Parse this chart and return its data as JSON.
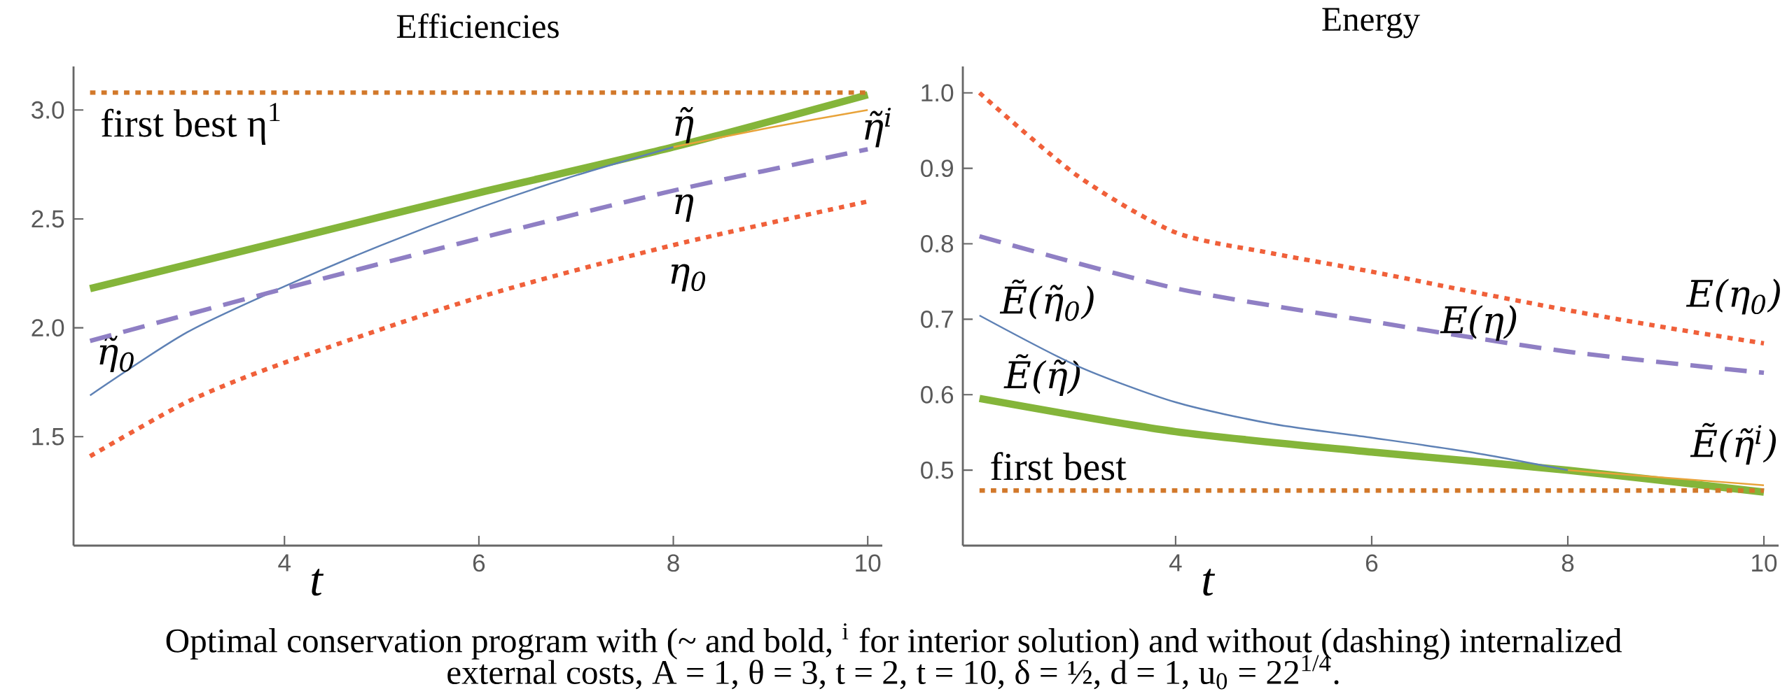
{
  "chart_data": [
    {
      "type": "line",
      "title": "Efficiencies",
      "xlabel": "t",
      "xlim": [
        1.83,
        10.15
      ],
      "ylim": [
        1.0,
        3.2
      ],
      "xticks": [
        4,
        6,
        8,
        10
      ],
      "yticks": [
        1.5,
        {
          "value": 2.0,
          "label": "2.0"
        },
        2.5,
        {
          "value": 3.0,
          "label": "3.0"
        }
      ],
      "series": [
        {
          "name": "η̃",
          "color": "#84b53a",
          "line_style": "solid",
          "x": [
            2,
            4,
            6,
            8,
            10
          ],
          "values": [
            2.18,
            2.4,
            2.62,
            2.83,
            3.07
          ]
        },
        {
          "name": "η̃$^{i}$",
          "color": "#e8a33a",
          "line_style": "solid",
          "x": [
            8,
            9,
            10
          ],
          "values": [
            2.83,
            2.92,
            3.0
          ]
        },
        {
          "name": "η̃$_{0}$",
          "color": "#5e81b5",
          "line_style": "solid",
          "x": [
            2,
            3,
            4,
            5,
            6,
            7,
            8
          ],
          "values": [
            1.69,
            1.98,
            2.19,
            2.38,
            2.55,
            2.7,
            2.83
          ]
        },
        {
          "name": "η",
          "color": "#8f7fc4",
          "line_style": "dashed",
          "x": [
            2,
            4,
            6,
            8,
            10
          ],
          "values": [
            1.94,
            2.18,
            2.41,
            2.63,
            2.82
          ]
        },
        {
          "name": "η$_{0}$",
          "color": "#f0603a",
          "line_style": "dotted",
          "x": [
            2,
            3,
            4,
            6,
            8,
            10
          ],
          "values": [
            1.41,
            1.66,
            1.84,
            2.14,
            2.38,
            2.58
          ]
        }
      ],
      "ref_lines": [
        {
          "axis": "y",
          "value": 3.08,
          "label": "first best η$^{1}$",
          "color": "#d2782a",
          "line_style": "dotted"
        }
      ],
      "annotations": [
        "Optimal conservation program with (~ and bold, $^{i}$ for interior solution) and without (dashing) internalized",
        "external costs, A = 1, θ = 3, t = 2, t = 10, δ = ½, d = 1, u$_{0}$ = 22$^{1/4}$."
      ]
    },
    {
      "type": "line",
      "title": "Energy",
      "xlabel": "t",
      "xlim": [
        1.83,
        10.15
      ],
      "ylim": [
        0.4,
        1.035
      ],
      "xticks": [
        4,
        6,
        8,
        10
      ],
      "yticks": [
        0.5,
        0.6,
        0.7,
        0.8,
        0.9,
        {
          "value": 1.0,
          "label": "1.0"
        }
      ],
      "series": [
        {
          "name": "Ẽ(η̃)",
          "color": "#84b53a",
          "line_style": "solid",
          "x": [
            2,
            4,
            6,
            8,
            10
          ],
          "values": [
            0.595,
            0.551,
            0.524,
            0.5,
            0.471
          ]
        },
        {
          "name": "Ẽ(η̃$^{i}$)",
          "color": "#e8a33a",
          "line_style": "solid",
          "x": [
            8,
            9,
            10
          ],
          "values": [
            0.5,
            0.49,
            0.48
          ]
        },
        {
          "name": "Ẽ(η̃$_{0}$)",
          "color": "#5e81b5",
          "line_style": "solid",
          "x": [
            2,
            3,
            4,
            5,
            6,
            7,
            8
          ],
          "values": [
            0.705,
            0.638,
            0.59,
            0.561,
            0.543,
            0.524,
            0.5
          ]
        },
        {
          "name": "E(η)",
          "color": "#8f7fc4",
          "line_style": "dashed",
          "x": [
            2,
            4,
            6,
            8,
            10
          ],
          "values": [
            0.81,
            0.741,
            0.697,
            0.657,
            0.629
          ]
        },
        {
          "name": "E(η$_{0}$)",
          "color": "#f0603a",
          "line_style": "dotted",
          "x": [
            2,
            3,
            4,
            5,
            6,
            7,
            8,
            9,
            10
          ],
          "values": [
            1.0,
            0.89,
            0.815,
            0.787,
            0.763,
            0.737,
            0.712,
            0.689,
            0.668
          ]
        }
      ],
      "ref_lines": [
        {
          "axis": "y",
          "value": 0.473,
          "label": "first best",
          "color": "#d2782a",
          "line_style": "dotted"
        }
      ]
    }
  ]
}
